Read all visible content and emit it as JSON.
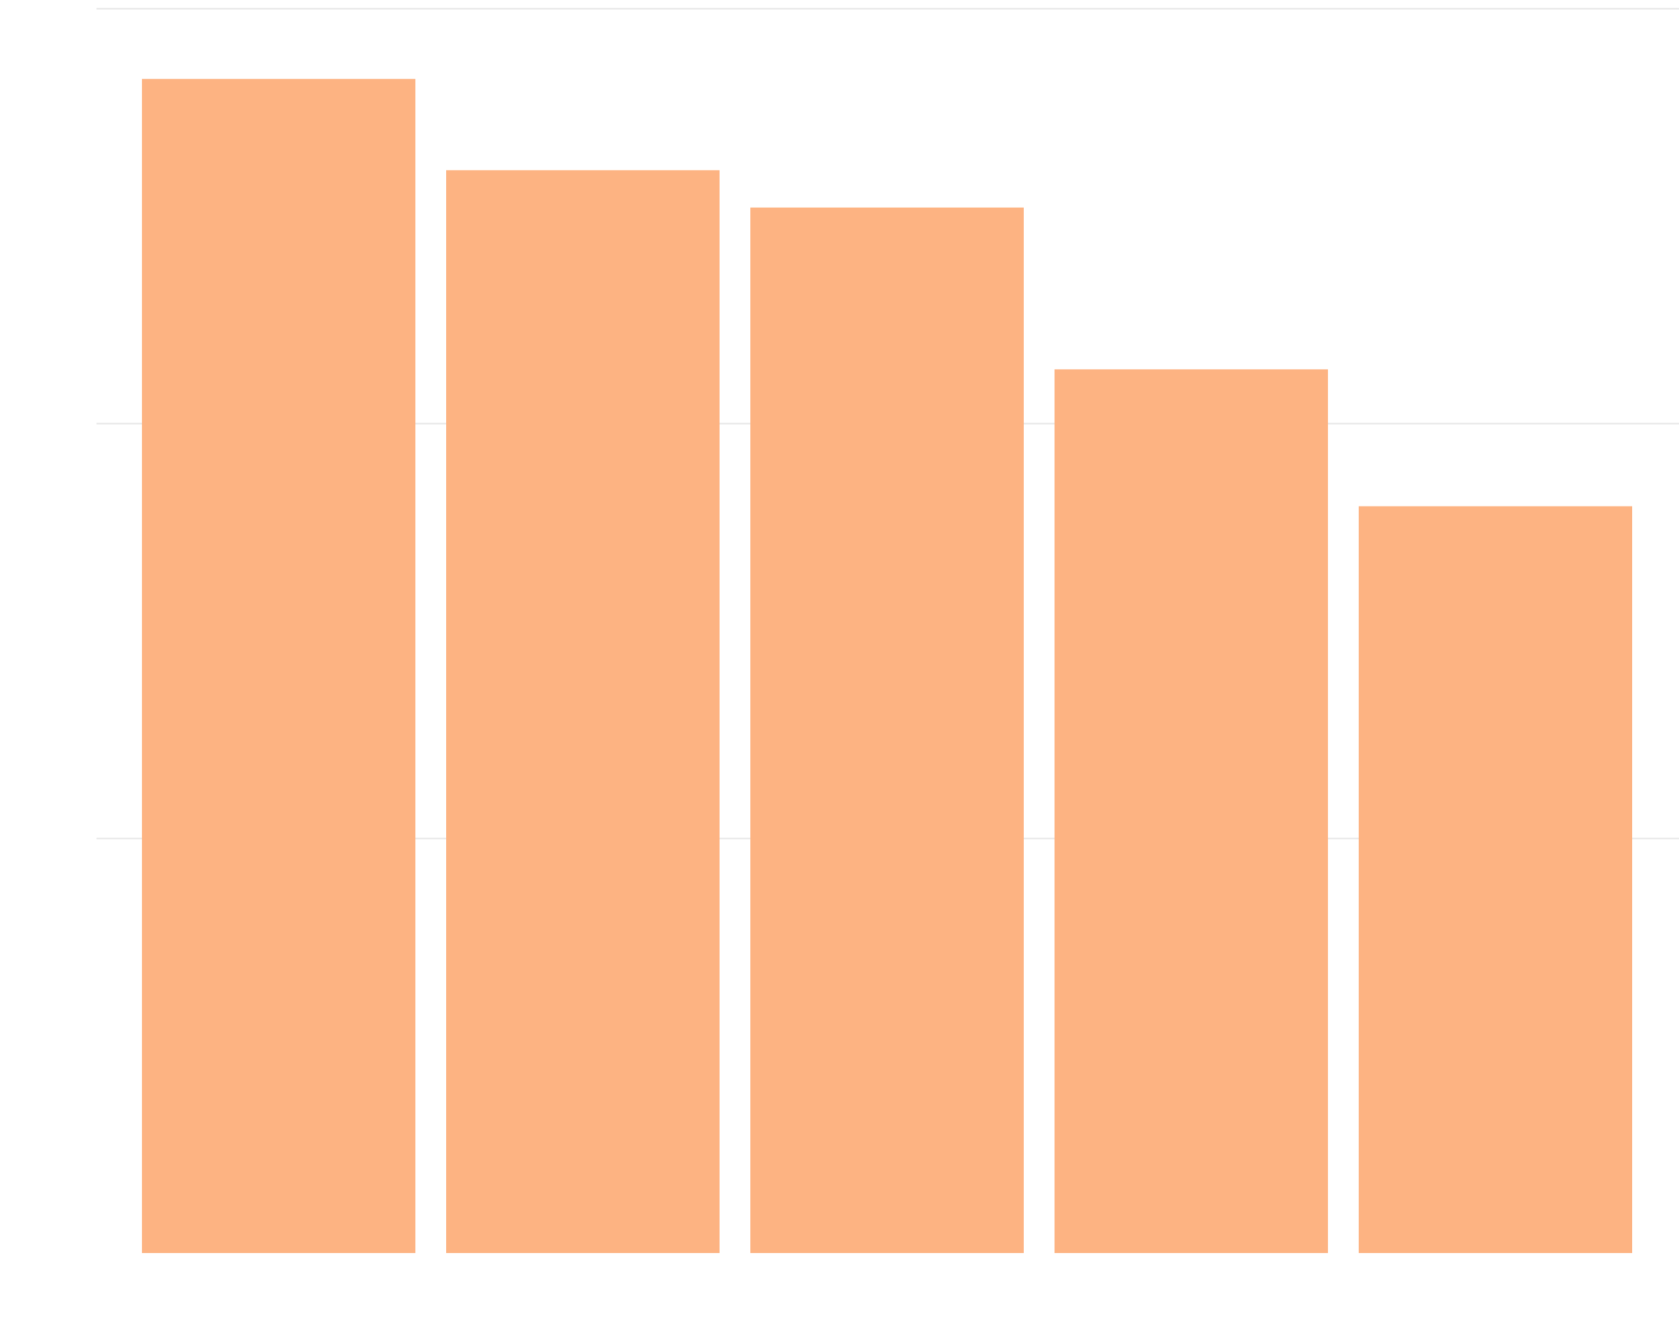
{
  "chart_data": {
    "type": "bar",
    "categories": [
      "",
      "",
      "",
      "",
      ""
    ],
    "values": [
      2.83,
      2.61,
      2.52,
      2.13,
      1.8
    ],
    "ylim": [
      0,
      3
    ],
    "yticks": [
      0,
      1,
      2,
      3
    ],
    "grid": true,
    "legend": "none",
    "colors": {
      "bar": "#fdb382",
      "grid": "#e6e6e6",
      "background": "#ffffff"
    }
  }
}
